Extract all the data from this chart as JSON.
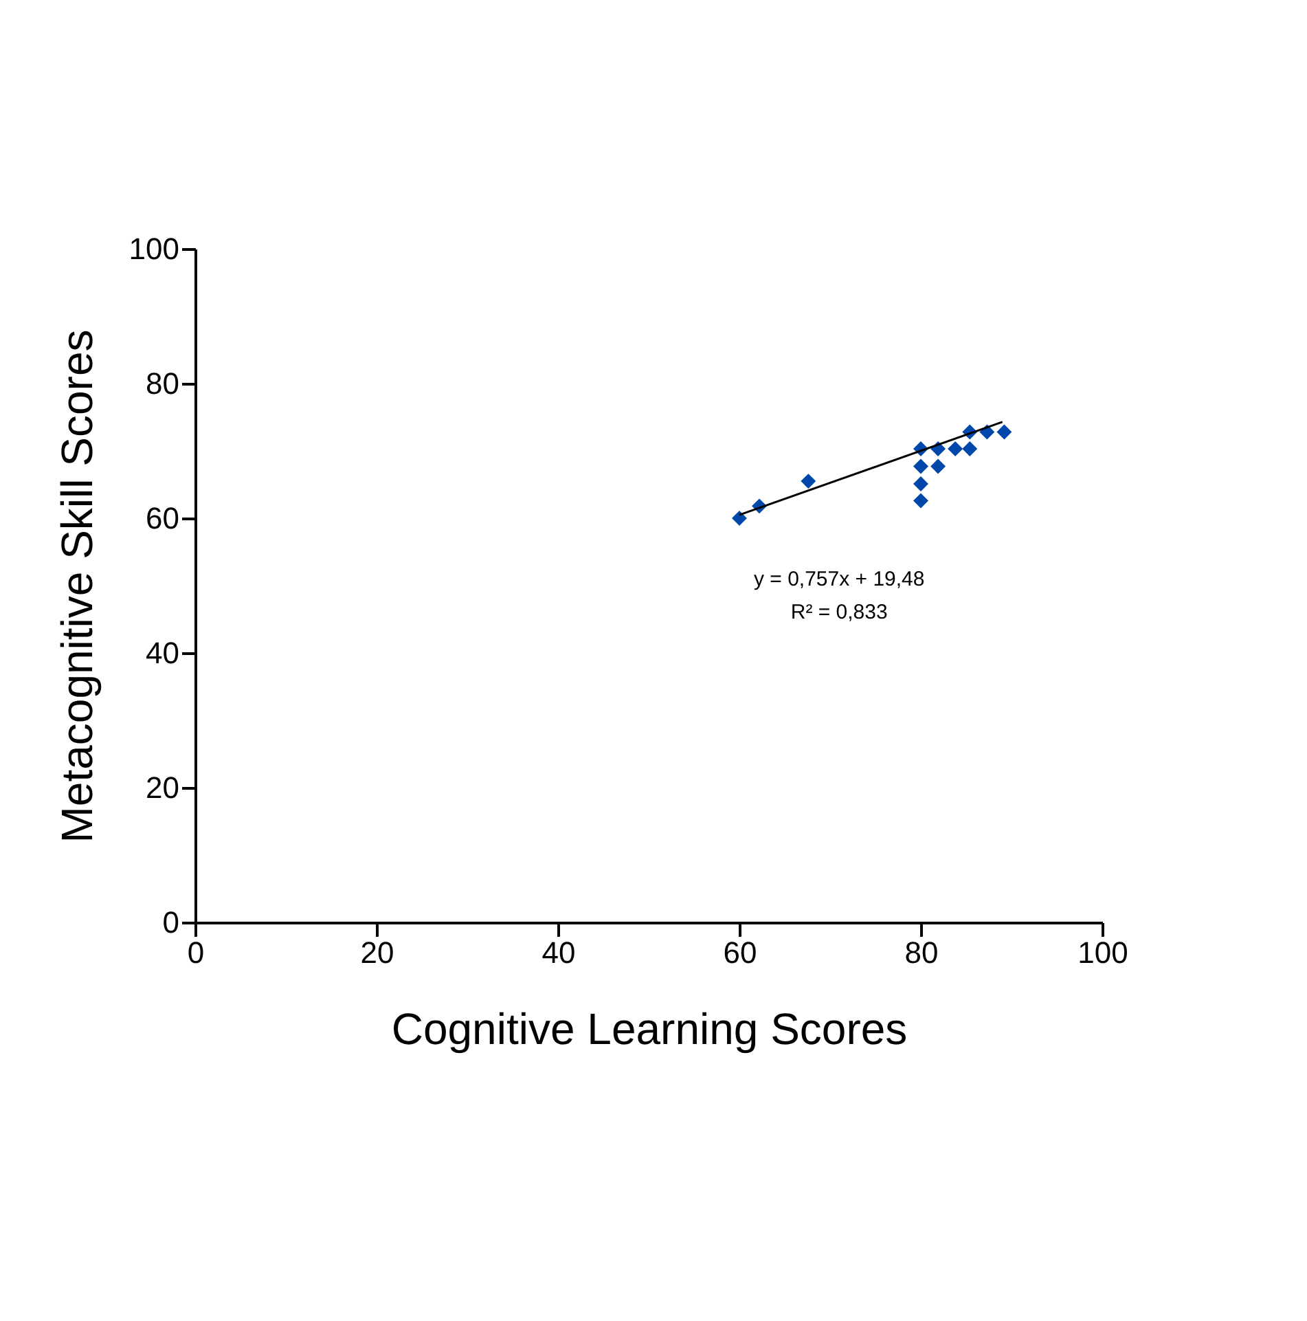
{
  "chart_data": {
    "type": "scatter",
    "xlabel": "Cognitive Learning Scores",
    "ylabel": "Metacognitive Skill Scores",
    "xlim": [
      0,
      100
    ],
    "xticks": [
      0,
      20,
      40,
      60,
      80,
      100
    ],
    "ylim": [
      0,
      100
    ],
    "yticks": [
      0,
      20,
      40,
      60,
      80,
      100
    ],
    "grid": false,
    "legend": false,
    "marker": "diamond",
    "annotations": [
      "y = 0,757x + 19,48",
      "R² = 0,833"
    ],
    "series": [
      {
        "color": "#0047ab",
        "x": [
          60,
          62.2,
          67.6,
          80,
          80,
          80,
          80,
          81.9,
          81.9,
          83.8,
          85.4,
          85.4,
          87.3,
          89.2
        ],
        "values": [
          60,
          61.8,
          65.5,
          70.3,
          67.7,
          65.1,
          62.6,
          70.3,
          67.7,
          70.3,
          72.8,
          70.3,
          72.8,
          72.8
        ]
      },
      {
        "type": "line",
        "color": "#000000",
        "line_style": "solid",
        "marker": "none",
        "x": [
          60,
          89
        ],
        "values": [
          60.5,
          74.3
        ]
      }
    ]
  }
}
